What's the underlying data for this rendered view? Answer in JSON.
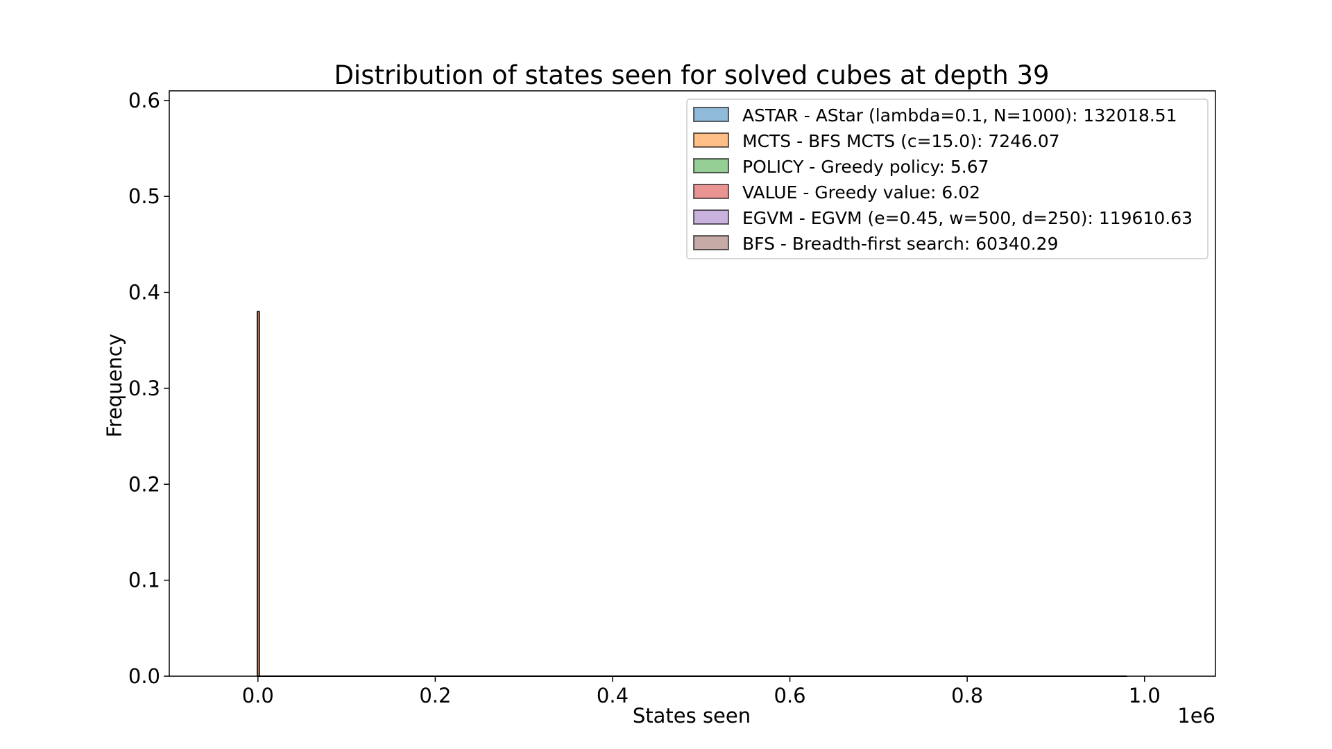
{
  "chart_data": {
    "type": "histogram",
    "title": "Distribution of states seen for solved cubes at depth 39",
    "xlabel": "States seen",
    "ylabel": "Frequency",
    "x_offset_label": "1e6",
    "xlim": [
      -0.1,
      1.08
    ],
    "ylim": [
      0,
      0.61
    ],
    "x_ticks": [
      0.0,
      0.2,
      0.4,
      0.6,
      0.8,
      1.0
    ],
    "x_tick_labels": [
      "0.0",
      "0.2",
      "0.4",
      "0.6",
      "0.8",
      "1.0"
    ],
    "y_ticks": [
      0.0,
      0.1,
      0.2,
      0.3,
      0.4,
      0.5,
      0.6
    ],
    "y_tick_labels": [
      "0.0",
      "0.1",
      "0.2",
      "0.3",
      "0.4",
      "0.5",
      "0.6"
    ],
    "grid": false,
    "legend_position": "top-right",
    "series": [
      {
        "name": "ASTAR - AStar (lambda=0.1, N=1000): 132018.51",
        "color": "#1f77b4",
        "bars": [
          {
            "x": 0.0,
            "y": 0.0
          }
        ]
      },
      {
        "name": "MCTS - BFS MCTS (c=15.0): 7246.07",
        "color": "#ff7f0e",
        "bars": [
          {
            "x": 0.0,
            "y": 0.0
          }
        ]
      },
      {
        "name": "POLICY - Greedy policy: 5.67",
        "color": "#2ca02c",
        "bars": [
          {
            "x": 0.0,
            "y": 0.38
          }
        ]
      },
      {
        "name": "VALUE - Greedy value: 6.02",
        "color": "#d62728",
        "bars": [
          {
            "x": 0.0,
            "y": 0.38
          }
        ]
      },
      {
        "name": "EGVM - EGVM (e=0.45, w=500, d=250): 119610.63",
        "color": "#9467bd",
        "bars": [
          {
            "x": 0.0,
            "y": 0.0
          }
        ]
      },
      {
        "name": "BFS - Breadth-first search: 60340.29",
        "color": "#8c564b",
        "bars": [
          {
            "x": 0.0,
            "y": 0.0
          }
        ]
      }
    ],
    "baseline_extent": [
      0.0,
      0.98
    ]
  }
}
